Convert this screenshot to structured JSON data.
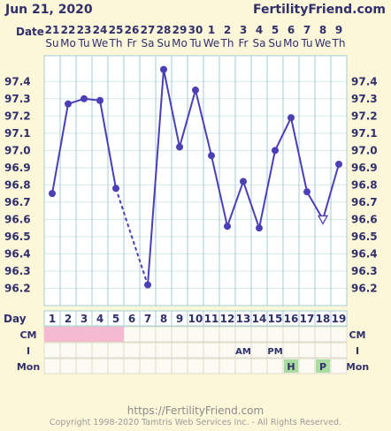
{
  "header": {
    "date": "Jun 21, 2020",
    "brand": "FertilityFriend.com"
  },
  "chart_data": {
    "type": "line",
    "title": "",
    "date_label": "Date",
    "dates": [
      "21",
      "22",
      "23",
      "24",
      "25",
      "26",
      "27",
      "28",
      "29",
      "30",
      "1",
      "2",
      "3",
      "4",
      "5",
      "6",
      "7",
      "8",
      "9"
    ],
    "weekdays": [
      "Su",
      "Mo",
      "Tu",
      "We",
      "Th",
      "Fr",
      "Sa",
      "Su",
      "Mo",
      "Tu",
      "We",
      "Th",
      "Fr",
      "Sa",
      "Su",
      "Mo",
      "Tu",
      "We",
      "Th"
    ],
    "day_label": "Day",
    "days": [
      1,
      2,
      3,
      4,
      5,
      6,
      7,
      8,
      9,
      10,
      11,
      12,
      13,
      14,
      15,
      16,
      17,
      18,
      19
    ],
    "temperatures": [
      96.75,
      97.27,
      97.3,
      97.29,
      96.78,
      null,
      96.22,
      97.47,
      97.02,
      97.35,
      96.97,
      96.56,
      96.82,
      96.55,
      97.0,
      97.19,
      96.76,
      96.6,
      96.92
    ],
    "temp_unit": "°F",
    "open_markers_days": [
      18
    ],
    "dashed_segments": [
      [
        5,
        7
      ]
    ],
    "ylim": [
      96.1,
      97.55
    ],
    "yticks": [
      "97.4",
      "97.3",
      "97.2",
      "97.1",
      "97.0",
      "96.9",
      "96.8",
      "96.7",
      "96.6",
      "96.5",
      "96.4",
      "96.3",
      "96.2"
    ],
    "rows": {
      "cm_label": "CM",
      "cm_pink_days": [
        1,
        2,
        3,
        4,
        5
      ],
      "i_label": "I",
      "i_values": {
        "13": "AM",
        "15": "PM"
      },
      "mon_label": "Mon",
      "mon_values": {
        "16": "H",
        "18": "P"
      }
    },
    "colors": {
      "line": "#4b3fb8",
      "grid": "#a3ccd0",
      "background": "#fdf7da",
      "plot_bg": "#ffffff",
      "cm_pink": "#f5b9d2",
      "mon_green": "#a8dca0"
    }
  },
  "footer": {
    "url": "https://FertilityFriend.com",
    "copyright": "Copyright 1998-2020 Tamtris Web Services Inc. - All Rights Reserved."
  }
}
